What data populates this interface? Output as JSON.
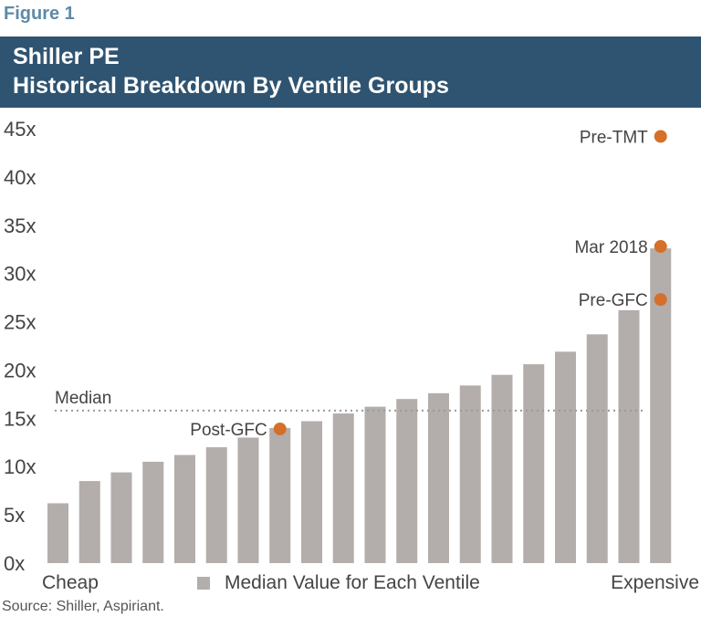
{
  "figure_label": "Figure 1",
  "title_line1": "Shiller PE",
  "title_line2": "Historical Breakdown By Ventile Groups",
  "source": "Source: Shiller, Aspiriant.",
  "colors": {
    "bar": "#b3aeab",
    "marker": "#d4702a",
    "title_bg": "#2f5471",
    "median_line": "#999999"
  },
  "chart_data": {
    "type": "bar",
    "title": "Shiller PE",
    "subtitle": "Historical Breakdown By Ventile Groups",
    "categories": [
      "1",
      "2",
      "3",
      "4",
      "5",
      "6",
      "7",
      "8",
      "9",
      "10",
      "11",
      "12",
      "13",
      "14",
      "15",
      "16",
      "17",
      "18",
      "19",
      "20"
    ],
    "values": [
      6.2,
      8.5,
      9.4,
      10.5,
      11.2,
      12.0,
      13.0,
      14.0,
      14.7,
      15.5,
      16.2,
      17.0,
      17.6,
      18.4,
      19.5,
      20.6,
      21.9,
      23.7,
      26.2,
      32.6
    ],
    "ylim": [
      0,
      45
    ],
    "yticks": [
      0,
      5,
      10,
      15,
      20,
      25,
      30,
      35,
      40,
      45
    ],
    "ytick_labels": [
      "0x",
      "5x",
      "10x",
      "15x",
      "20x",
      "25x",
      "30x",
      "35x",
      "40x",
      "45x"
    ],
    "x_left_label": "Cheap",
    "x_right_label": "Expensive",
    "legend": "Median Value for Each Ventile",
    "median": {
      "label": "Median",
      "value": 15.8
    },
    "annotations": [
      {
        "label": "Pre-TMT",
        "category_index": 19,
        "value": 44.2
      },
      {
        "label": "Mar 2018",
        "category_index": 19,
        "value": 32.8
      },
      {
        "label": "Pre-GFC",
        "category_index": 19,
        "value": 27.3
      },
      {
        "label": "Post-GFC",
        "category_index": 7,
        "value": 13.9
      }
    ]
  }
}
